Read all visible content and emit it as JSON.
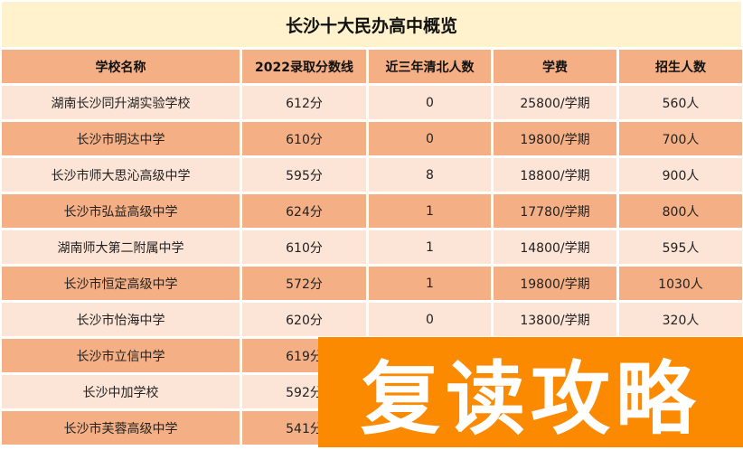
{
  "title": "长沙十大民办高中概览",
  "headers": [
    "学校名称",
    "2022录取分数线",
    "近三年清北人数",
    "学费",
    "招生人数"
  ],
  "rows": [
    [
      "湖南长沙同升湖实验学校",
      "612分",
      "0",
      "25800/学期",
      "560人"
    ],
    [
      "长沙市明达中学",
      "610分",
      "0",
      "19800/学期",
      "700人"
    ],
    [
      "长沙市师大思沁高级中学",
      "595分",
      "8",
      "18800/学期",
      "900人"
    ],
    [
      "长沙市弘益高级中学",
      "624分",
      "1",
      "17780/学期",
      "800人"
    ],
    [
      "湖南师大第二附属中学",
      "610分",
      "1",
      "14800/学期",
      "595人"
    ],
    [
      "长沙市恒定高级中学",
      "572分",
      "1",
      "19800/学期",
      "1030人"
    ],
    [
      "长沙市怡海中学",
      "620分",
      "0",
      "13800/学期",
      "320人"
    ],
    [
      "长沙市立信中学",
      "619分",
      "",
      "",
      ""
    ],
    [
      "长沙中加学校",
      "592分",
      "",
      "",
      ""
    ],
    [
      "长沙市芙蓉高级中学",
      "541分",
      "",
      "",
      ""
    ]
  ],
  "overlay_text": "复读攻略",
  "colors": {
    "title_bg": "#fff2cc",
    "header_bg": "#f4b084",
    "row_light": "#fce4d6",
    "row_dark": "#f4b084",
    "overlay": "#fc8a00"
  }
}
